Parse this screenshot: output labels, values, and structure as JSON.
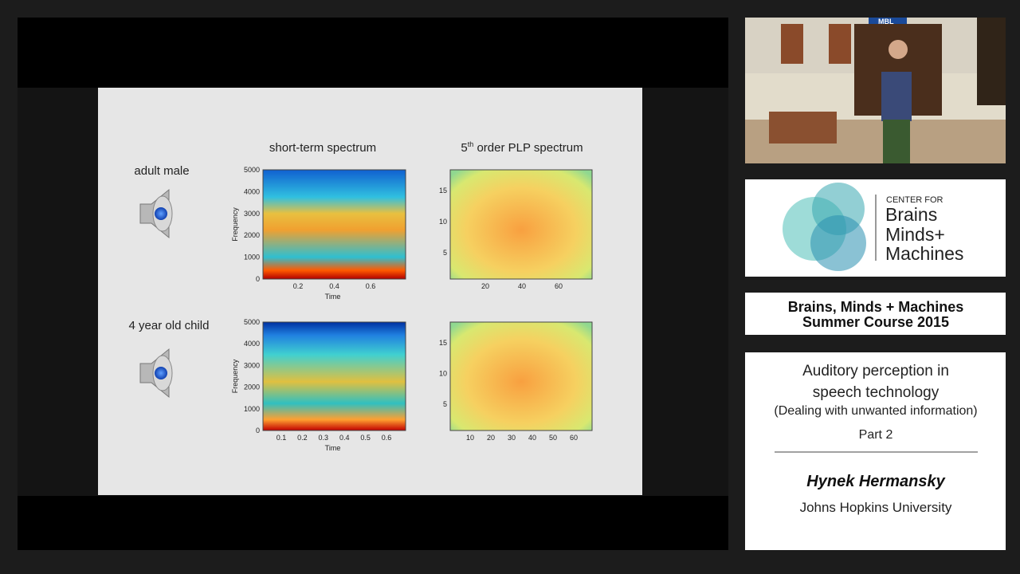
{
  "slide": {
    "spectrum_title": "short-term spectrum",
    "plp_title": [
      "5",
      "th",
      " order PLP spectrum"
    ],
    "rows": [
      {
        "label": "adult male",
        "spectrogram": {
          "yticks": [
            "0",
            "1000",
            "2000",
            "3000",
            "4000",
            "5000"
          ],
          "xticks": [
            "0.2",
            "0.4",
            "0.6"
          ],
          "ylabel": "Frequency",
          "xlabel": "Time"
        },
        "plp": {
          "yticks": [
            "5",
            "10",
            "15"
          ],
          "xticks": [
            "20",
            "40",
            "60"
          ]
        }
      },
      {
        "label": "4 year old child",
        "spectrogram": {
          "yticks": [
            "0",
            "1000",
            "2000",
            "3000",
            "4000",
            "5000"
          ],
          "xticks": [
            "0.1",
            "0.2",
            "0.3",
            "0.4",
            "0.5",
            "0.6"
          ],
          "ylabel": "Frequency",
          "xlabel": "Time"
        },
        "plp": {
          "yticks": [
            "5",
            "10",
            "15"
          ],
          "xticks": [
            "10",
            "20",
            "30",
            "40",
            "50",
            "60"
          ]
        }
      }
    ]
  },
  "camera": {
    "sign": "MBL"
  },
  "logo": {
    "center_for": "CENTER FOR",
    "lines": [
      "Brains",
      "Minds+",
      "Machines"
    ]
  },
  "course": {
    "lines": [
      "Brains, Minds + Machines",
      "Summer Course 2015"
    ]
  },
  "lecture": {
    "title": [
      "Auditory perception in",
      "speech technology"
    ],
    "subtitle": "(Dealing with unwanted information)",
    "part": "Part 2",
    "speaker": "Hynek Hermansky",
    "affiliation": "Johns Hopkins University"
  }
}
